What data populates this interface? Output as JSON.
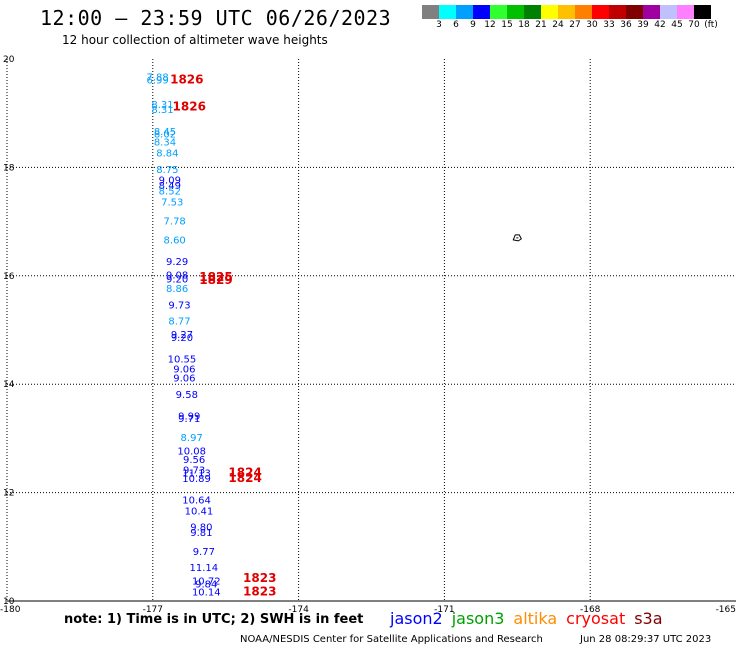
{
  "title": "12:00 — 23:59 UTC 06/26/2023",
  "subtitle": "12 hour collection of altimeter wave heights",
  "legend": {
    "colors": [
      "#808080",
      "#00ffff",
      "#00a0ff",
      "#0000ff",
      "#30ff30",
      "#00c000",
      "#008000",
      "#ffff00",
      "#ffc000",
      "#ff8000",
      "#ff0000",
      "#c00000",
      "#800000",
      "#a000a0",
      "#c0c0ff",
      "#ff80ff",
      "#000000"
    ],
    "labels": [
      "3",
      "6",
      "9",
      "12",
      "15",
      "18",
      "21",
      "24",
      "27",
      "30",
      "33",
      "36",
      "39",
      "42",
      "45",
      "70",
      "(ft)"
    ]
  },
  "axes": {
    "x_ticks": [
      "-180",
      "-177",
      "-174",
      "-171",
      "-168",
      "-165"
    ],
    "y_ticks": [
      "20",
      "18",
      "16",
      "14",
      "12",
      "10"
    ],
    "lon_range": [
      -180,
      -165
    ],
    "lat_range": [
      10,
      20
    ]
  },
  "chart_data": {
    "type": "scatter",
    "observations": [
      {
        "lon": -176.9,
        "lat": 19.6,
        "value": "7.88",
        "color": "#00a0ff"
      },
      {
        "lon": -176.9,
        "lat": 19.55,
        "value": "6.99",
        "color": "#00a0ff"
      },
      {
        "lon": -176.8,
        "lat": 19.1,
        "value": "8.31",
        "color": "#00a0ff"
      },
      {
        "lon": -176.8,
        "lat": 19.0,
        "value": "8.31",
        "color": "#00a0ff"
      },
      {
        "lon": -176.75,
        "lat": 18.6,
        "value": "8.45",
        "color": "#00a0ff"
      },
      {
        "lon": -176.75,
        "lat": 18.55,
        "value": "8.02",
        "color": "#00a0ff"
      },
      {
        "lon": -176.75,
        "lat": 18.4,
        "value": "8.34",
        "color": "#00a0ff"
      },
      {
        "lon": -176.7,
        "lat": 18.2,
        "value": "8.84",
        "color": "#00a0ff"
      },
      {
        "lon": -176.7,
        "lat": 17.9,
        "value": "8.75",
        "color": "#00a0ff"
      },
      {
        "lon": -176.65,
        "lat": 17.7,
        "value": "9.09",
        "color": "#0000ff"
      },
      {
        "lon": -176.65,
        "lat": 17.6,
        "value": "8.49",
        "color": "#0000ff"
      },
      {
        "lon": -176.65,
        "lat": 17.5,
        "value": "8.52",
        "color": "#00a0ff"
      },
      {
        "lon": -176.6,
        "lat": 17.3,
        "value": "7.53",
        "color": "#00a0ff"
      },
      {
        "lon": -176.55,
        "lat": 16.95,
        "value": "7.78",
        "color": "#00a0ff"
      },
      {
        "lon": -176.55,
        "lat": 16.6,
        "value": "8.60",
        "color": "#00a0ff"
      },
      {
        "lon": -176.5,
        "lat": 16.2,
        "value": "9.29",
        "color": "#0000ff"
      },
      {
        "lon": -176.5,
        "lat": 15.95,
        "value": "9.08",
        "color": "#0000ff"
      },
      {
        "lon": -176.5,
        "lat": 15.88,
        "value": "9.20",
        "color": "#0000ff"
      },
      {
        "lon": -176.5,
        "lat": 15.7,
        "value": "8.86",
        "color": "#00a0ff"
      },
      {
        "lon": -176.45,
        "lat": 15.4,
        "value": "9.73",
        "color": "#0000ff"
      },
      {
        "lon": -176.45,
        "lat": 15.1,
        "value": "8.77",
        "color": "#00a0ff"
      },
      {
        "lon": -176.4,
        "lat": 14.85,
        "value": "9.27",
        "color": "#0000ff"
      },
      {
        "lon": -176.4,
        "lat": 14.8,
        "value": "9.20",
        "color": "#0000ff"
      },
      {
        "lon": -176.4,
        "lat": 14.4,
        "value": "10.55",
        "color": "#0000ff"
      },
      {
        "lon": -176.35,
        "lat": 14.22,
        "value": "9.06",
        "color": "#0000ff"
      },
      {
        "lon": -176.35,
        "lat": 14.05,
        "value": "9.06",
        "color": "#0000ff"
      },
      {
        "lon": -176.3,
        "lat": 13.75,
        "value": "9.58",
        "color": "#0000ff"
      },
      {
        "lon": -176.25,
        "lat": 13.35,
        "value": "9.99",
        "color": "#0000ff"
      },
      {
        "lon": -176.25,
        "lat": 13.3,
        "value": "9.71",
        "color": "#0000ff"
      },
      {
        "lon": -176.2,
        "lat": 12.95,
        "value": "8.97",
        "color": "#00a0ff"
      },
      {
        "lon": -176.2,
        "lat": 12.7,
        "value": "10.08",
        "color": "#0000ff"
      },
      {
        "lon": -176.15,
        "lat": 12.55,
        "value": "9.56",
        "color": "#0000ff"
      },
      {
        "lon": -176.15,
        "lat": 12.35,
        "value": "9.73",
        "color": "#0000ff"
      },
      {
        "lon": -176.1,
        "lat": 12.3,
        "value": "11.13",
        "color": "#0000ff"
      },
      {
        "lon": -176.1,
        "lat": 12.2,
        "value": "10.89",
        "color": "#0000ff"
      },
      {
        "lon": -176.1,
        "lat": 11.8,
        "value": "10.64",
        "color": "#0000ff"
      },
      {
        "lon": -176.05,
        "lat": 11.6,
        "value": "10.41",
        "color": "#0000ff"
      },
      {
        "lon": -176.0,
        "lat": 11.3,
        "value": "9.80",
        "color": "#0000ff"
      },
      {
        "lon": -176.0,
        "lat": 11.2,
        "value": "9.81",
        "color": "#0000ff"
      },
      {
        "lon": -175.95,
        "lat": 10.85,
        "value": "9.77",
        "color": "#0000ff"
      },
      {
        "lon": -175.95,
        "lat": 10.55,
        "value": "11.14",
        "color": "#0000ff"
      },
      {
        "lon": -175.9,
        "lat": 10.3,
        "value": "10.72",
        "color": "#0000ff"
      },
      {
        "lon": -175.9,
        "lat": 10.25,
        "value": "9.84",
        "color": "#0000ff"
      },
      {
        "lon": -175.9,
        "lat": 10.1,
        "value": "10.14",
        "color": "#0000ff"
      }
    ],
    "times": [
      {
        "lon": -176.3,
        "lat": 19.55,
        "label": "1826"
      },
      {
        "lon": -176.25,
        "lat": 19.05,
        "label": "1826"
      },
      {
        "lon": -175.7,
        "lat": 15.9,
        "label": "1825"
      },
      {
        "lon": -175.7,
        "lat": 15.85,
        "label": "1829"
      },
      {
        "lon": -175.1,
        "lat": 12.3,
        "label": "1824"
      },
      {
        "lon": -175.1,
        "lat": 12.2,
        "label": "1824"
      },
      {
        "lon": -174.8,
        "lat": 10.35,
        "label": "1823"
      },
      {
        "lon": -174.8,
        "lat": 10.1,
        "label": "1823"
      }
    ]
  },
  "island_marker": {
    "lon": -169.5,
    "lat": 16.7
  },
  "note": "note:  1) Time is in UTC;  2) SWH is in feet",
  "satellites": [
    {
      "name": "jason2",
      "color": "#0000ff"
    },
    {
      "name": "jason3",
      "color": "#00a000"
    },
    {
      "name": "altika",
      "color": "#ff8c00"
    },
    {
      "name": "cryosat",
      "color": "#ff0000"
    },
    {
      "name": "s3a",
      "color": "#800000"
    }
  ],
  "credit": "NOAA/NESDIS Center for Satellite Applications and Research",
  "timestamp": "Jun 28 08:29:37 UTC 2023"
}
